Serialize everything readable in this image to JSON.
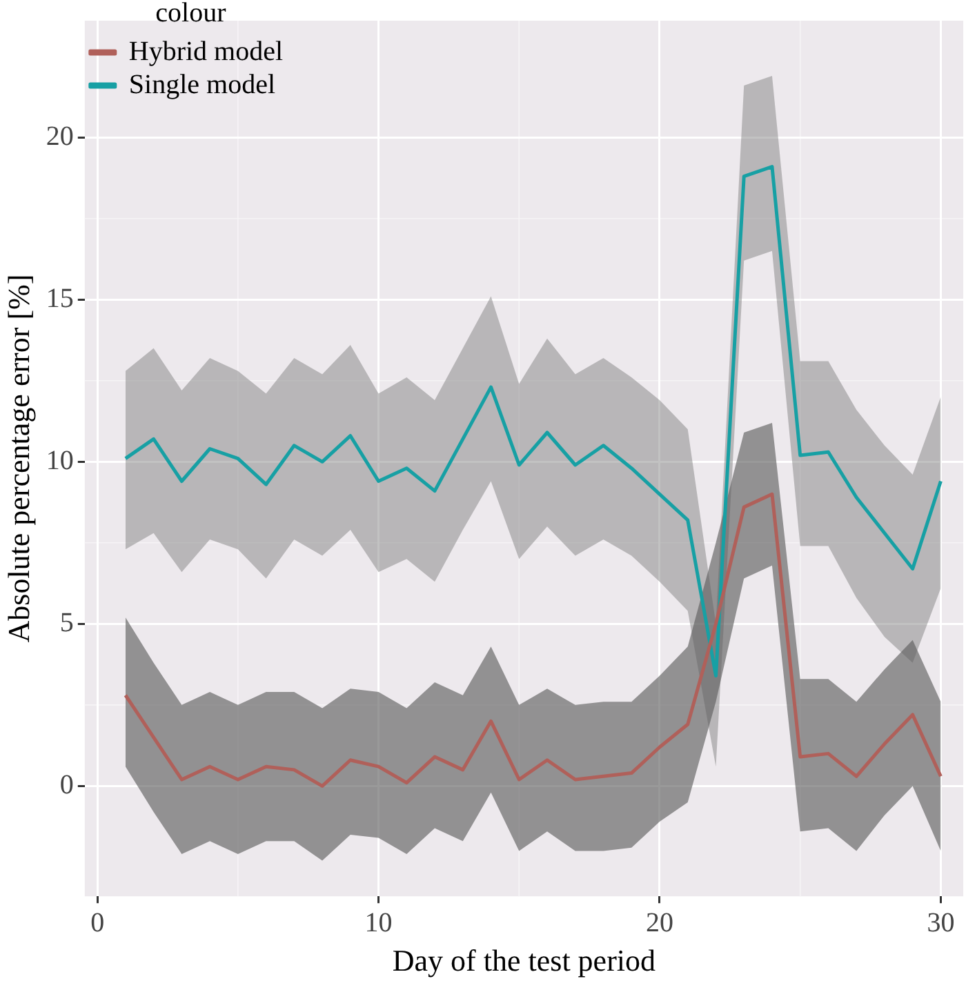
{
  "chart_data": {
    "type": "line",
    "xlabel": "Day of the test period",
    "ylabel": "Absolute percentage error [%]",
    "legend_title": "colour",
    "legend": "top left",
    "grid": true,
    "x": [
      1,
      2,
      3,
      4,
      5,
      6,
      7,
      8,
      9,
      10,
      11,
      12,
      13,
      14,
      15,
      16,
      17,
      18,
      19,
      20,
      21,
      22,
      23,
      24,
      25,
      26,
      27,
      28,
      29,
      30
    ],
    "xlim": [
      -0.45,
      30.8
    ],
    "xticks": [
      0,
      10,
      20,
      30
    ],
    "ylim": [
      -3.4,
      23.6
    ],
    "yticks": [
      0,
      5,
      10,
      15,
      20
    ],
    "series": [
      {
        "name": "Hybrid model",
        "color": "#b0605a",
        "values": [
          2.8,
          1.5,
          0.2,
          0.6,
          0.2,
          0.6,
          0.5,
          0.0,
          0.8,
          0.6,
          0.1,
          0.9,
          0.5,
          2.0,
          0.2,
          0.8,
          0.2,
          0.3,
          0.4,
          1.2,
          1.9,
          5.0,
          8.6,
          9.0,
          0.9,
          1.0,
          0.3,
          1.3,
          2.2,
          0.3
        ],
        "upper": [
          5.2,
          3.8,
          2.5,
          2.9,
          2.5,
          2.9,
          2.9,
          2.4,
          3.0,
          2.9,
          2.4,
          3.2,
          2.8,
          4.3,
          2.5,
          3.0,
          2.5,
          2.6,
          2.6,
          3.4,
          4.3,
          7.5,
          10.9,
          11.2,
          3.3,
          3.3,
          2.6,
          3.6,
          4.5,
          2.6
        ],
        "lower": [
          0.6,
          -0.8,
          -2.1,
          -1.7,
          -2.1,
          -1.7,
          -1.7,
          -2.3,
          -1.5,
          -1.6,
          -2.1,
          -1.3,
          -1.7,
          -0.2,
          -2.0,
          -1.4,
          -2.0,
          -2.0,
          -1.9,
          -1.1,
          -0.5,
          2.6,
          6.4,
          6.8,
          -1.4,
          -1.3,
          -2.0,
          -0.9,
          0.0,
          -2.0
        ]
      },
      {
        "name": "Single model",
        "color": "#17a0a4",
        "values": [
          10.1,
          10.7,
          9.4,
          10.4,
          10.1,
          9.3,
          10.5,
          10.0,
          10.8,
          9.4,
          9.8,
          9.1,
          10.7,
          12.3,
          9.9,
          10.9,
          9.9,
          10.5,
          9.8,
          9.0,
          8.2,
          3.4,
          18.8,
          19.1,
          10.2,
          10.3,
          8.9,
          7.8,
          6.7,
          9.4
        ],
        "upper": [
          12.8,
          13.5,
          12.2,
          13.2,
          12.8,
          12.1,
          13.2,
          12.7,
          13.6,
          12.1,
          12.6,
          11.9,
          13.5,
          15.1,
          12.4,
          13.8,
          12.7,
          13.2,
          12.6,
          11.9,
          11.0,
          5.0,
          21.6,
          21.9,
          13.1,
          13.1,
          11.6,
          10.5,
          9.6,
          12.0
        ],
        "lower": [
          7.3,
          7.8,
          6.6,
          7.6,
          7.3,
          6.4,
          7.6,
          7.1,
          7.9,
          6.6,
          7.0,
          6.3,
          7.9,
          9.4,
          7.0,
          8.0,
          7.1,
          7.6,
          7.1,
          6.3,
          5.4,
          0.6,
          16.2,
          16.5,
          7.4,
          7.4,
          5.8,
          4.6,
          3.8,
          6.1
        ]
      }
    ]
  }
}
